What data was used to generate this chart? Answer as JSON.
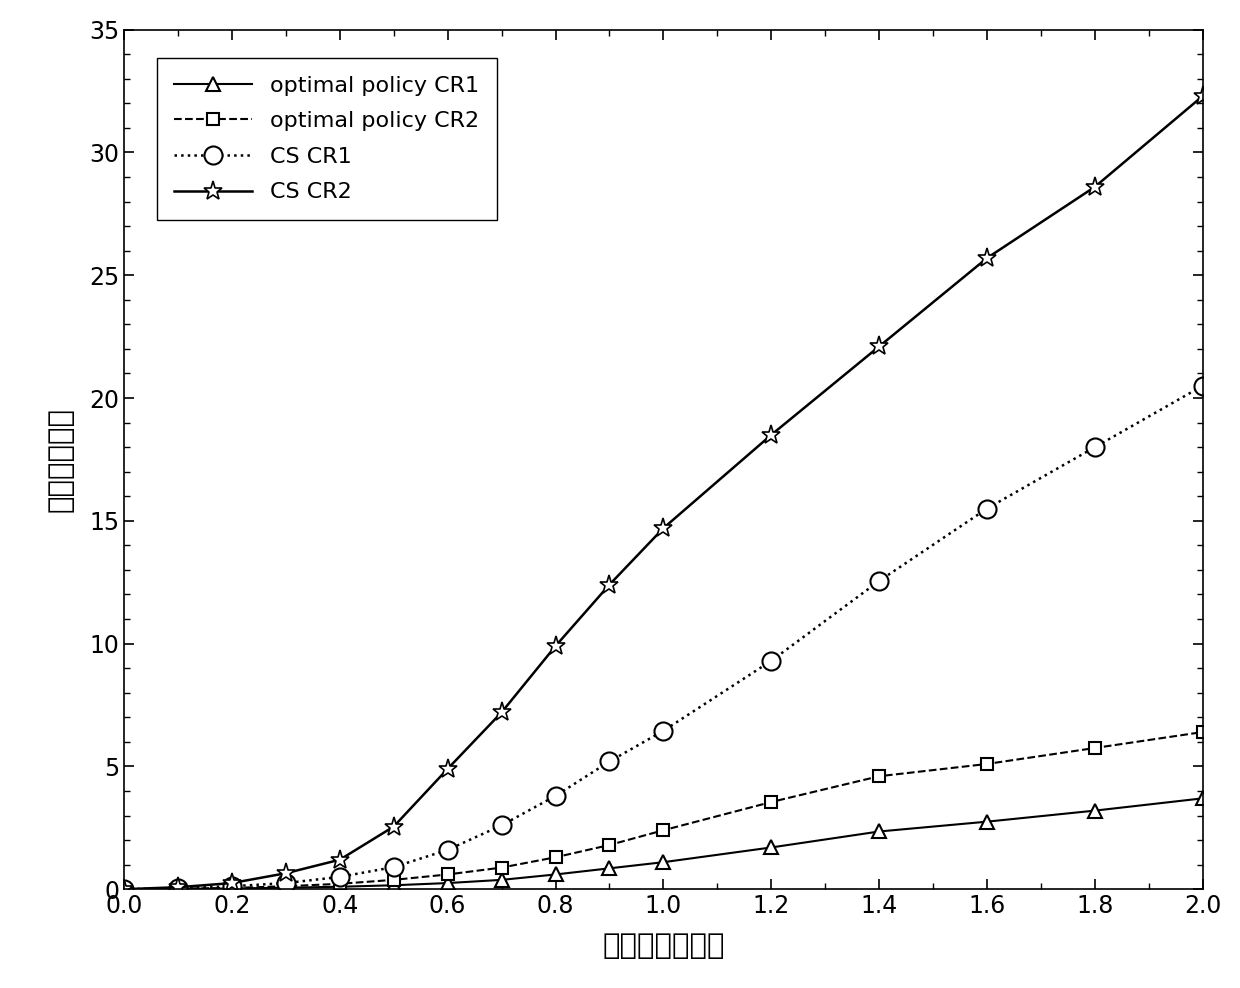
{
  "x": [
    0,
    0.1,
    0.2,
    0.3,
    0.4,
    0.5,
    0.6,
    0.7,
    0.8,
    0.9,
    1.0,
    1.2,
    1.4,
    1.6,
    1.8,
    2.0
  ],
  "optimal_CR1": [
    0,
    0.01,
    0.03,
    0.06,
    0.1,
    0.16,
    0.25,
    0.38,
    0.6,
    0.85,
    1.1,
    1.7,
    2.35,
    2.75,
    3.2,
    3.7
  ],
  "optimal_CR2": [
    0,
    0.02,
    0.05,
    0.12,
    0.22,
    0.38,
    0.6,
    0.88,
    1.3,
    1.8,
    2.4,
    3.55,
    4.6,
    5.1,
    5.75,
    6.4
  ],
  "cs_CR1": [
    0,
    0.04,
    0.12,
    0.25,
    0.5,
    0.9,
    1.6,
    2.6,
    3.8,
    5.2,
    6.45,
    9.3,
    12.55,
    15.5,
    18.0,
    20.5
  ],
  "cs_CR2": [
    0,
    0.08,
    0.25,
    0.65,
    1.2,
    2.55,
    4.9,
    7.2,
    9.9,
    12.4,
    14.7,
    18.5,
    22.1,
    25.7,
    28.6,
    32.3
  ],
  "xlim": [
    0,
    2.0
  ],
  "ylim": [
    0,
    35
  ],
  "xticks": [
    0,
    0.2,
    0.4,
    0.6,
    0.8,
    1.0,
    1.2,
    1.4,
    1.6,
    1.8,
    2.0
  ],
  "yticks": [
    0,
    5,
    10,
    15,
    20,
    25,
    30,
    35
  ],
  "xlabel": "网络负载量化値",
  "ylabel": "网络平均能耗",
  "legend_labels": [
    "optimal policy CR1",
    "optimal policy CR2",
    "CS CR1",
    "CS CR2"
  ],
  "background_color": "#ffffff",
  "line_color": "#000000"
}
